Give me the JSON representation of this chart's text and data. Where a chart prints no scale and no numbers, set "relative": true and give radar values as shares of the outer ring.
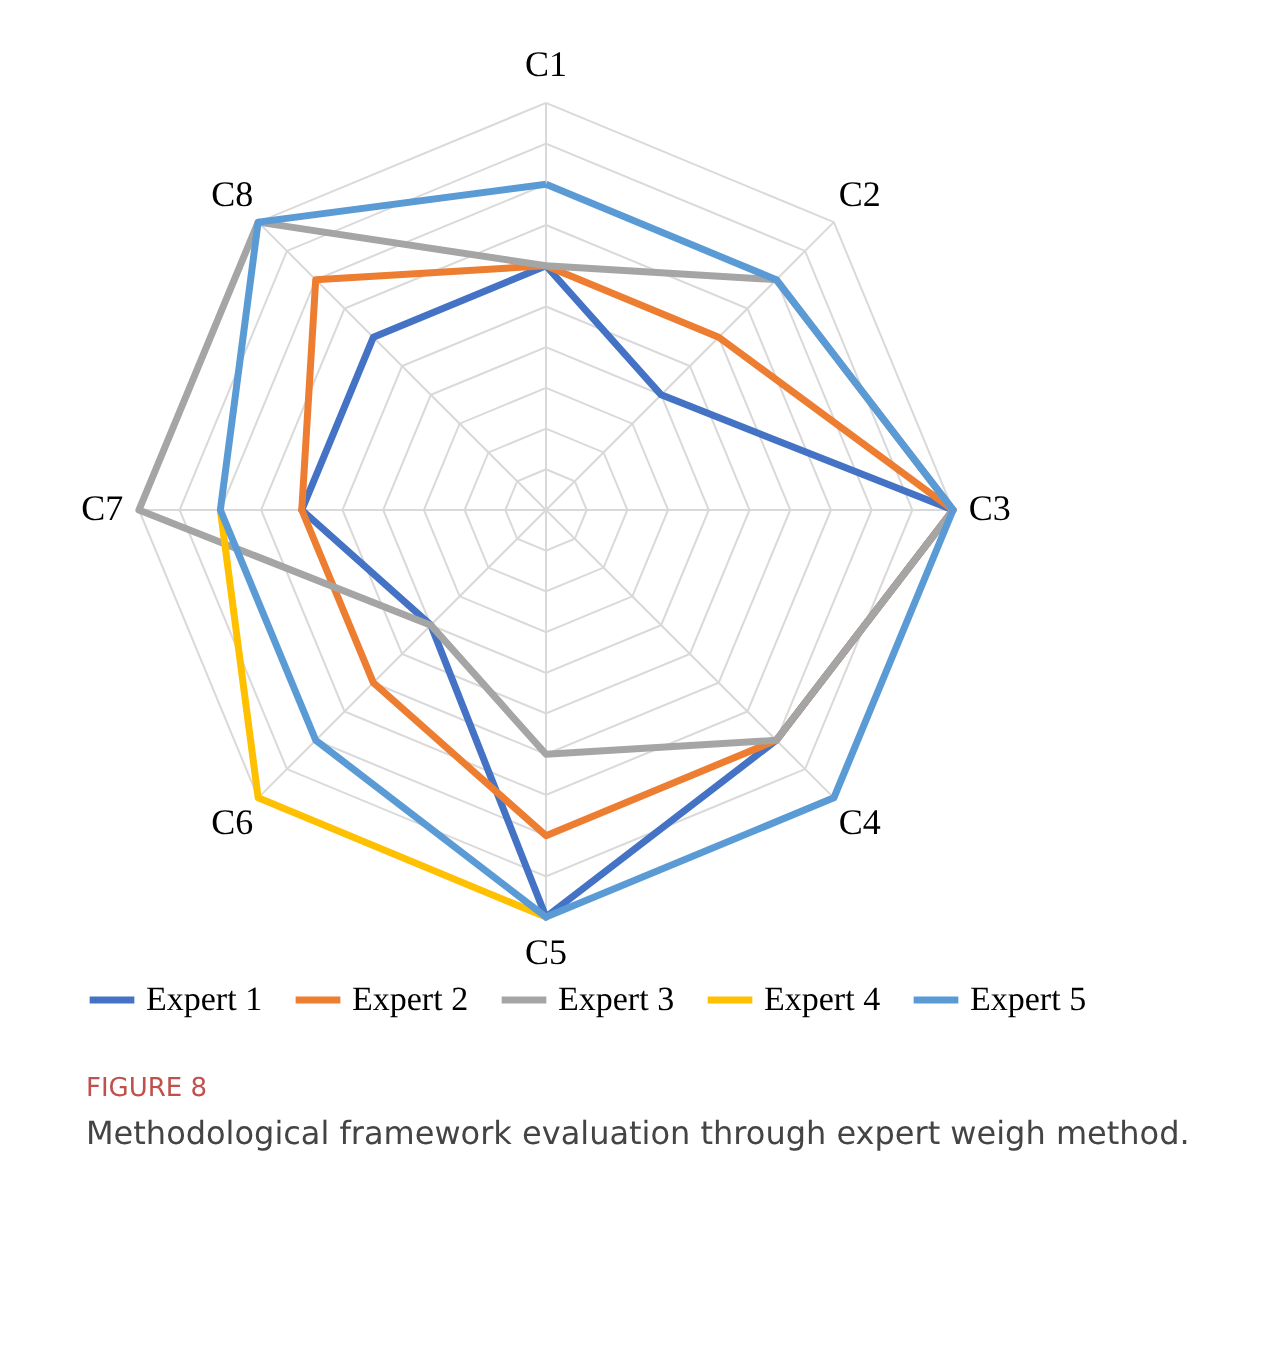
{
  "chart_data": {
    "type": "radar",
    "title": "FIGURE 8",
    "subtitle": "Methodological framework evaluation through expert weigh method.",
    "relative": true,
    "grid": true,
    "legend": "bottom",
    "categories": [
      "C1",
      "C2",
      "C3",
      "C4",
      "C5",
      "C6",
      "C7",
      "C8"
    ],
    "series": [
      {
        "name": "Expert 1",
        "color": "#4472c4",
        "values": [
          0.6,
          0.4,
          1.0,
          0.8,
          1.0,
          0.4,
          0.6,
          0.6
        ]
      },
      {
        "name": "Expert 2",
        "color": "#ed7d31",
        "values": [
          0.6,
          0.6,
          1.0,
          0.8,
          0.8,
          0.6,
          0.6,
          0.8
        ]
      },
      {
        "name": "Expert 3",
        "color": "#a5a5a5",
        "values": [
          0.6,
          0.8,
          1.0,
          0.8,
          0.6,
          0.4,
          1.0,
          1.0
        ]
      },
      {
        "name": "Expert 4",
        "color": "#ffc000",
        "values": [
          null,
          null,
          null,
          null,
          1.0,
          1.0,
          0.8,
          null
        ]
      },
      {
        "name": "Expert 5",
        "color": "#5b9bd5",
        "values": [
          0.8,
          0.8,
          1.0,
          1.0,
          1.0,
          0.8,
          0.8,
          1.0
        ]
      }
    ]
  }
}
